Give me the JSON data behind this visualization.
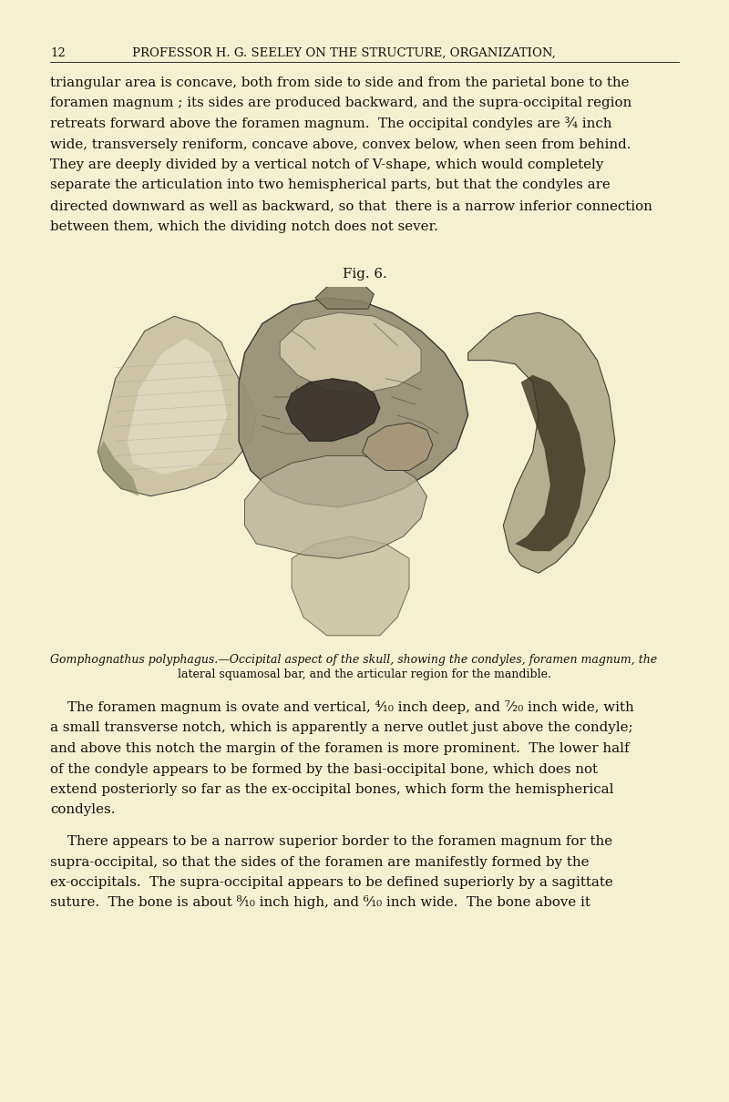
{
  "bg_color": "#F5F0D0",
  "page_number": "12",
  "header_text": "PROFESSOR H. G. SEELEY ON THE STRUCTURE, ORGANIZATION,",
  "header_fontsize": 9.5,
  "body_fontsize": 10.8,
  "caption_fontsize": 9.0,
  "fig_label": "Fig. 6.",
  "caption_line1": "Gomphognathus polyphagus.—Occipital aspect of the skull, showing the condyles, foramen magnum, the",
  "caption_line2": "lateral squamosal bar, and the articular region for the mandible.",
  "para1_indent": "triangular area is concave, both from side to side and from the parietal bone to the",
  "para1_lines": [
    "triangular area is concave, both from side to side and from the parietal bone to the",
    "foramen magnum ; its sides are produced backward, and the supra-occipital region",
    "retreats forward above the foramen magnum.  The occipital condyles are ¾ inch",
    "wide, transversely reniform, concave above, convex below, when seen from behind.",
    "They are deeply divided by a vertical notch of V-shape, which would completely",
    "separate the articulation into two hemispherical parts, but that the condyles are",
    "directed downward as well as backward, so that  there is a narrow inferior connection",
    "between them, which the dividing notch does not sever."
  ],
  "para2_lines": [
    "    The foramen magnum is ovate and vertical, ⁴⁄₁₀ inch deep, and ⁷⁄₂₀ inch wide, with",
    "a small transverse notch, which is apparently a nerve outlet just above the condyle;",
    "and above this notch the margin of the foramen is more prominent.  The lower half",
    "of the condyle appears to be formed by the basi-occipital bone, which does not",
    "extend posteriorly so far as the ex-occipital bones, which form the hemispherical",
    "condyles."
  ],
  "para3_lines": [
    "    There appears to be a narrow superior border to the foramen magnum for the",
    "supra-occipital, so that the sides of the foramen are manifestly formed by the",
    "ex-occipitals.  The supra-occipital appears to be defined superiorly by a sagittate",
    "suture.  The bone is about ⁸⁄₁₀ inch high, and ⁶⁄₁₀ inch wide.  The bone above it"
  ],
  "text_color": "#111111",
  "header_color": "#111111"
}
